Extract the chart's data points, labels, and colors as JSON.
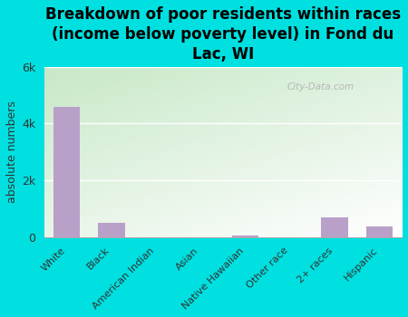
{
  "title": "Breakdown of poor residents within races\n(income below poverty level) in Fond du\nLac, WI",
  "categories": [
    "White",
    "Black",
    "American Indian",
    "Asian",
    "Native Hawaiian",
    "Other race",
    "2+ races",
    "Hispanic"
  ],
  "values": [
    4600,
    500,
    0,
    0,
    60,
    0,
    700,
    380
  ],
  "bar_color": "#b8a0c8",
  "ylabel": "absolute numbers",
  "ylim": [
    0,
    6000
  ],
  "yticks": [
    0,
    2000,
    4000,
    6000
  ],
  "ytick_labels": [
    "0",
    "2k",
    "4k",
    "6k"
  ],
  "background_color": "#00e0e0",
  "plot_bg_top_left": "#c8e8c8",
  "plot_bg_bottom_right": "#f8fff8",
  "title_fontsize": 12,
  "watermark": "City-Data.com"
}
